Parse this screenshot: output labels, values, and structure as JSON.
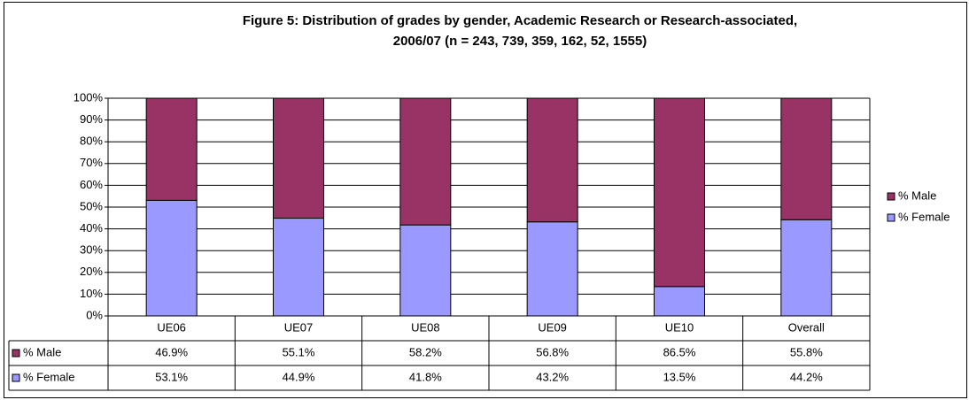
{
  "chart_data": {
    "type": "stacked_bar",
    "title": [
      "Figure 5: Distribution of grades by gender, Academic Research or Research-associated,",
      "2006/07 (n = 243, 739, 359, 162, 52, 1555)"
    ],
    "categories": [
      "UE06",
      "UE07",
      "UE08",
      "UE09",
      "UE10",
      "Overall"
    ],
    "series": [
      {
        "name": "% Female",
        "color": "#9999ff",
        "values": [
          53.1,
          44.9,
          41.8,
          43.2,
          13.5,
          44.2
        ],
        "value_labels": [
          "53.1%",
          "44.9%",
          "41.8%",
          "43.2%",
          "13.5%",
          "44.2%"
        ]
      },
      {
        "name": "% Male",
        "color": "#993366",
        "values": [
          46.9,
          55.1,
          58.2,
          56.8,
          86.5,
          55.8
        ],
        "value_labels": [
          "46.9%",
          "55.1%",
          "58.2%",
          "56.8%",
          "86.5%",
          "55.8%"
        ]
      }
    ],
    "ylim": [
      0,
      100
    ],
    "yticks": [
      {
        "value": 0,
        "label": "0%"
      },
      {
        "value": 10,
        "label": "10%"
      },
      {
        "value": 20,
        "label": "20%"
      },
      {
        "value": 30,
        "label": "30%"
      },
      {
        "value": 40,
        "label": "40%"
      },
      {
        "value": 50,
        "label": "50%"
      },
      {
        "value": 60,
        "label": "60%"
      },
      {
        "value": 70,
        "label": "70%"
      },
      {
        "value": 80,
        "label": "80%"
      },
      {
        "value": 90,
        "label": "90%"
      },
      {
        "value": 100,
        "label": "100%"
      }
    ],
    "grid": true,
    "legend": "right"
  }
}
